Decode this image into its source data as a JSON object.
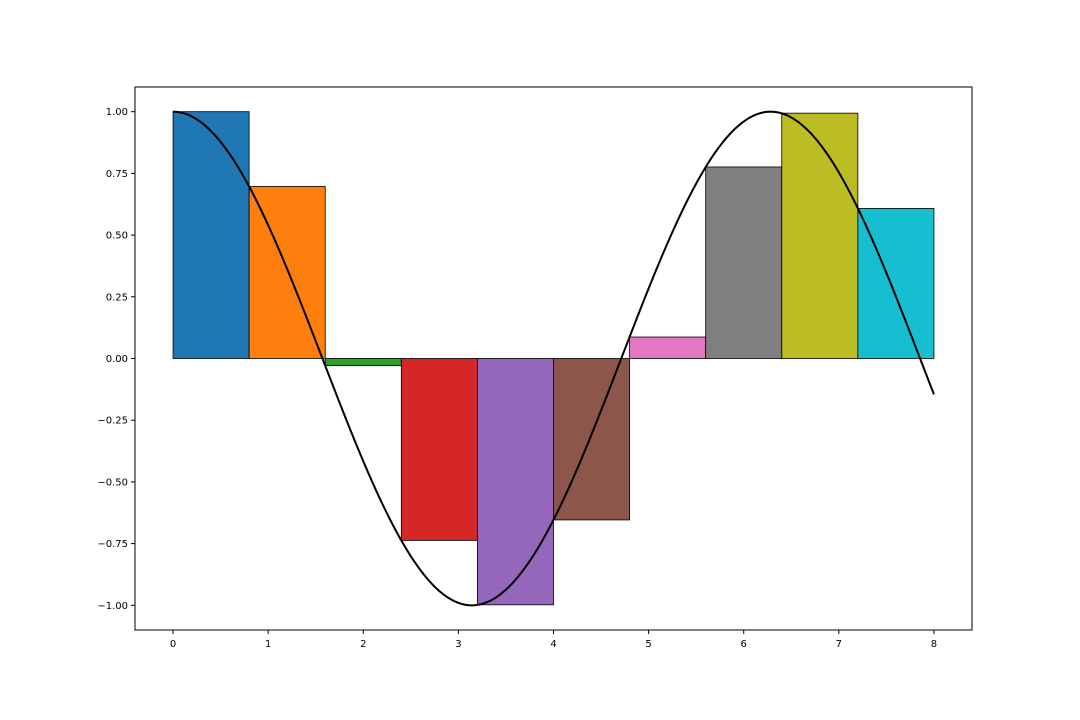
{
  "chart_data": {
    "type": "bar",
    "title": "",
    "xlabel": "",
    "ylabel": "",
    "xlim": [
      -0.4,
      8.4
    ],
    "ylim": [
      -1.1,
      1.1
    ],
    "grid": false,
    "bars": [
      {
        "x0": 0.0,
        "x1": 0.8,
        "value": 1.0,
        "color": "#1f77b4"
      },
      {
        "x0": 0.8,
        "x1": 1.6,
        "value": 0.697,
        "color": "#ff7f0e"
      },
      {
        "x0": 1.6,
        "x1": 2.4,
        "value": -0.029,
        "color": "#2ca02c"
      },
      {
        "x0": 2.4,
        "x1": 3.2,
        "value": -0.737,
        "color": "#d62728"
      },
      {
        "x0": 3.2,
        "x1": 4.0,
        "value": -0.998,
        "color": "#9467bd"
      },
      {
        "x0": 4.0,
        "x1": 4.8,
        "value": -0.654,
        "color": "#8c564b"
      },
      {
        "x0": 4.8,
        "x1": 5.6,
        "value": 0.087,
        "color": "#e377c2"
      },
      {
        "x0": 5.6,
        "x1": 6.4,
        "value": 0.776,
        "color": "#7f7f7f"
      },
      {
        "x0": 6.4,
        "x1": 7.2,
        "value": 0.994,
        "color": "#bcbd22"
      },
      {
        "x0": 7.2,
        "x1": 8.0,
        "value": 0.608,
        "color": "#17becf"
      }
    ],
    "curve": {
      "function": "cos",
      "x_range": [
        0,
        8
      ],
      "color": "#000000"
    },
    "x_ticks": [
      0,
      1,
      2,
      3,
      4,
      5,
      6,
      7,
      8
    ],
    "x_tick_labels": [
      "0",
      "1",
      "2",
      "3",
      "4",
      "5",
      "6",
      "7",
      "8"
    ],
    "y_ticks": [
      1.0,
      0.75,
      0.5,
      0.25,
      0.0,
      -0.25,
      -0.5,
      -0.75,
      -1.0
    ],
    "y_tick_labels": [
      "1.00",
      "0.75",
      "0.50",
      "0.25",
      "0.00",
      "−0.25",
      "−0.50",
      "−0.75",
      "−1.00"
    ]
  }
}
